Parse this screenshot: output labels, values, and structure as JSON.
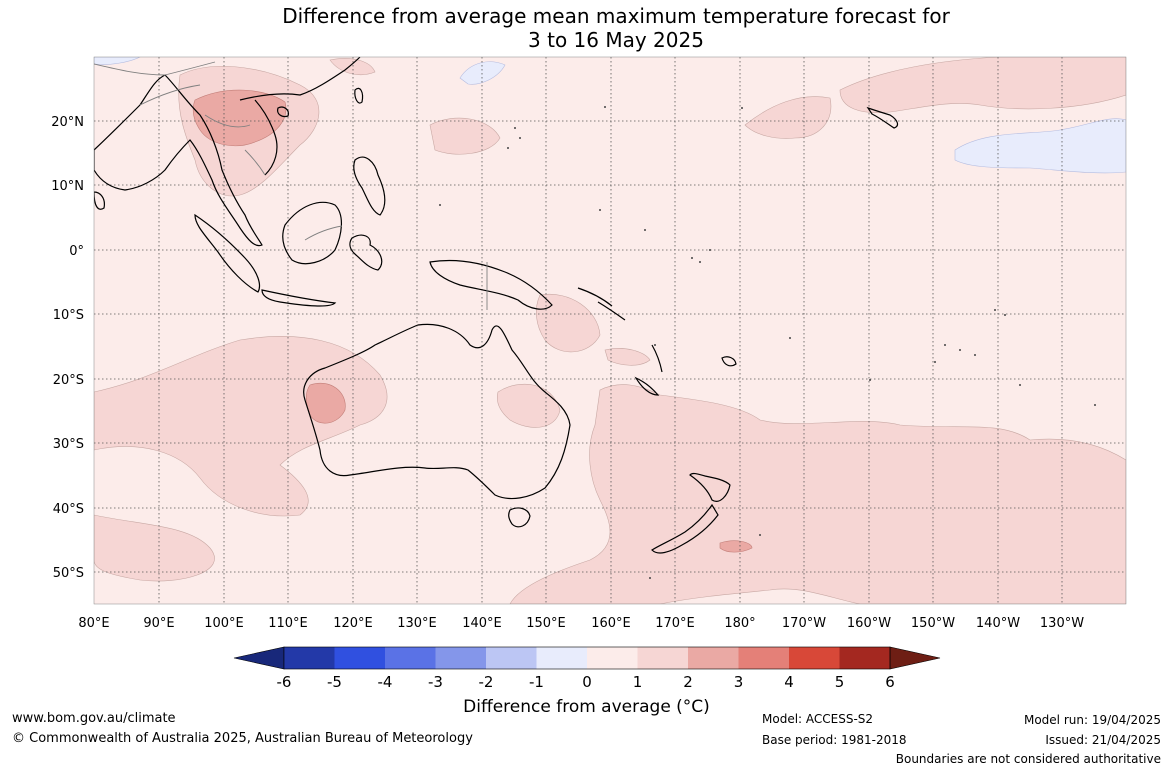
{
  "title_line1": "Difference from average mean maximum temperature forecast for",
  "title_line2": "3 to 16 May 2025",
  "map": {
    "lon_labels": [
      "80°E",
      "90°E",
      "100°E",
      "110°E",
      "120°E",
      "130°E",
      "140°E",
      "150°E",
      "160°E",
      "170°E",
      "180°",
      "170°W",
      "160°W",
      "150°W",
      "140°W",
      "130°W"
    ],
    "lat_labels": [
      "20°N",
      "10°N",
      "0°",
      "10°S",
      "20°S",
      "30°S",
      "40°S",
      "50°S"
    ],
    "grid": true,
    "extent": {
      "lon_min": 80,
      "lon_max": 239,
      "lat_min": -55,
      "lat_max": 30
    }
  },
  "colorbar": {
    "title": "Difference from average (°C)",
    "tick_labels": [
      "-6",
      "-5",
      "-4",
      "-3",
      "-2",
      "-1",
      "0",
      "1",
      "2",
      "3",
      "4",
      "5",
      "6"
    ],
    "colors": [
      "#18287a",
      "#2339a8",
      "#3050e0",
      "#5a72e6",
      "#8496ea",
      "#bcc6f4",
      "#e8ecfc",
      "#fcecea",
      "#f6d6d4",
      "#eaa9a4",
      "#e48078",
      "#d84838",
      "#a42820",
      "#6e1e14"
    ],
    "extend": "both"
  },
  "footer": {
    "website": "www.bom.gov.au/climate",
    "copyright": "© Commonwealth of Australia 2025, Australian Bureau of Meteorology",
    "model": "Model: ACCESS-S2",
    "base_period": "Base period: 1981-2018",
    "model_run": "Model run: 19/04/2025",
    "issued": "Issued: 21/04/2025",
    "disclaimer": "Boundaries are not considered authoritative"
  }
}
